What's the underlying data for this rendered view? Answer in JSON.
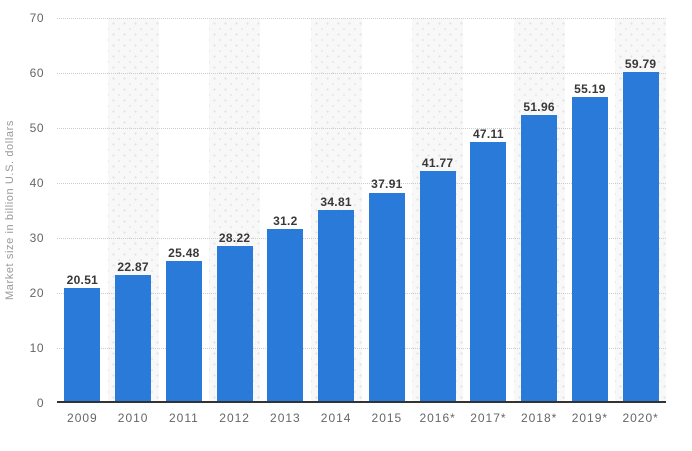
{
  "chart_data": {
    "type": "bar",
    "categories": [
      "2009",
      "2010",
      "2011",
      "2012",
      "2013",
      "2014",
      "2015",
      "2016*",
      "2017*",
      "2018*",
      "2019*",
      "2020*"
    ],
    "values": [
      20.51,
      22.87,
      25.48,
      28.22,
      31.2,
      34.81,
      37.91,
      41.77,
      47.11,
      51.96,
      55.19,
      59.79
    ],
    "value_labels": [
      "20.51",
      "22.87",
      "25.48",
      "28.22",
      "31.2",
      "34.81",
      "37.91",
      "41.77",
      "47.11",
      "51.96",
      "55.19",
      "59.79"
    ],
    "title": "",
    "xlabel": "",
    "ylabel": "Market size in billion U.S. dollars",
    "ylim": [
      0,
      70
    ],
    "yticks": [
      0,
      10,
      20,
      30,
      40,
      50,
      60,
      70
    ],
    "grid": "horizontal-dotted",
    "legend": "none",
    "plot_bands": "alternating dotted-texture vertical bands behind every second category",
    "colors": {
      "bar": "#2a7ad9",
      "value_label": "#383838",
      "axis_label": "#666666",
      "y_axis_title": "#999999",
      "gridline": "#cccccc",
      "band_background": "#f8f8f8",
      "band_dots": "#e2e2e2",
      "baseline": "#333333",
      "background": "#ffffff"
    }
  }
}
